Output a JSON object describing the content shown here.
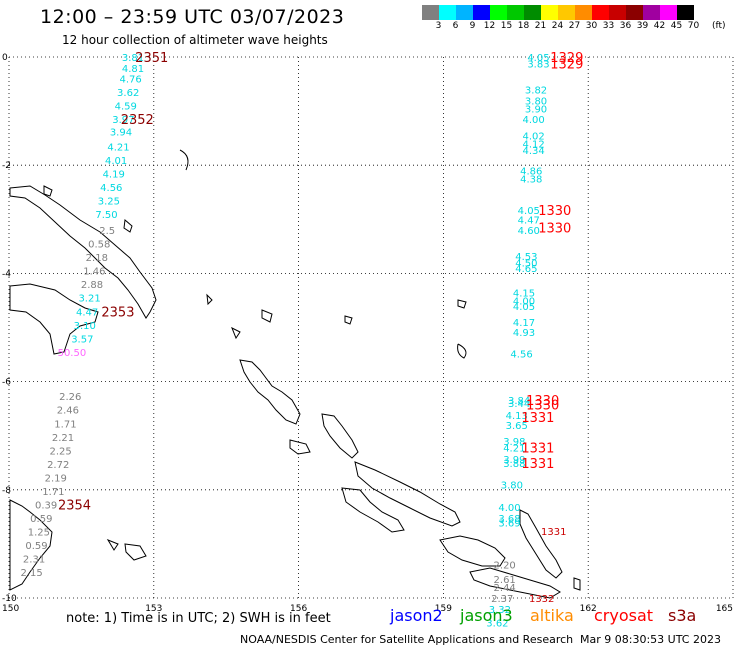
{
  "header": {
    "title": "12:00 – 23:59 UTC 03/07/2023",
    "subtitle": "12 hour collection of altimeter wave heights"
  },
  "legend": {
    "unit": "(ft)",
    "bins": [
      {
        "label": "3",
        "color": "#808080"
      },
      {
        "label": "6",
        "color": "#00ffff"
      },
      {
        "label": "9",
        "color": "#00b4ff"
      },
      {
        "label": "12",
        "color": "#0000ff"
      },
      {
        "label": "15",
        "color": "#00ff00"
      },
      {
        "label": "18",
        "color": "#00c800"
      },
      {
        "label": "21",
        "color": "#008c00"
      },
      {
        "label": "24",
        "color": "#ffff00"
      },
      {
        "label": "27",
        "color": "#ffc800"
      },
      {
        "label": "30",
        "color": "#ff8c00"
      },
      {
        "label": "33",
        "color": "#ff0000"
      },
      {
        "label": "36",
        "color": "#c80000"
      },
      {
        "label": "39",
        "color": "#8b0000"
      },
      {
        "label": "42",
        "color": "#a000a0"
      },
      {
        "label": "45",
        "color": "#ff00ff"
      },
      {
        "label": "70",
        "color": "#000000"
      }
    ]
  },
  "axes": {
    "x_ticks": [
      150,
      153,
      156,
      159,
      162,
      165
    ],
    "y_ticks": [
      0,
      -2,
      -4,
      -6,
      -8,
      -10
    ]
  },
  "chart_data": {
    "type": "scatter",
    "title": "12:00 – 23:59 UTC 03/07/2023",
    "subtitle": "12 hour collection of altimeter wave heights",
    "xlabel": "",
    "ylabel": "",
    "xlim": [
      150,
      165
    ],
    "ylim": [
      -10,
      0
    ],
    "grid": true,
    "series": [
      {
        "name": "jason2",
        "color": "#0000ff",
        "points": []
      },
      {
        "name": "jason3",
        "color": "#00a000",
        "points": []
      },
      {
        "name": "altika",
        "color": "#ff8c00",
        "points": []
      },
      {
        "name": "cryosat",
        "color": "#ff0000",
        "points": [
          {
            "lon": 161.55,
            "lat": -8.76,
            "text": "1331",
            "color": "#cc0000"
          },
          {
            "lon": 161.3,
            "lat": -10.0,
            "text": "1332",
            "color": "#cc0000"
          }
        ]
      },
      {
        "name": "s3a",
        "color": "#8b0000",
        "points": [
          {
            "lon": 152.8,
            "lat": 0.0,
            "text": "3.81",
            "color": "#00d8e0"
          },
          {
            "lon": 152.8,
            "lat": -0.2,
            "text": "4.81",
            "color": "#00d8e0"
          },
          {
            "lon": 152.75,
            "lat": -0.4,
            "text": "4.76",
            "color": "#00d8e0"
          },
          {
            "lon": 152.7,
            "lat": -0.65,
            "text": "3.62",
            "color": "#00d8e0"
          },
          {
            "lon": 152.65,
            "lat": -0.9,
            "text": "4.59",
            "color": "#00d8e0"
          },
          {
            "lon": 152.6,
            "lat": -1.15,
            "text": "3.97",
            "color": "#00d8e0"
          },
          {
            "lon": 152.55,
            "lat": -1.38,
            "text": "3.94",
            "color": "#00d8e0"
          },
          {
            "lon": 152.5,
            "lat": -1.65,
            "text": "4.21",
            "color": "#00d8e0"
          },
          {
            "lon": 152.45,
            "lat": -1.9,
            "text": "4.01",
            "color": "#00d8e0"
          },
          {
            "lon": 152.4,
            "lat": -2.15,
            "text": "4.19",
            "color": "#00d8e0"
          },
          {
            "lon": 152.35,
            "lat": -2.4,
            "text": "4.56",
            "color": "#00d8e0"
          },
          {
            "lon": 152.3,
            "lat": -2.65,
            "text": "3.25",
            "color": "#00d8e0"
          },
          {
            "lon": 152.25,
            "lat": -2.9,
            "text": "7.50",
            "color": "#00d8e0"
          },
          {
            "lon": 152.2,
            "lat": -3.2,
            "text": "2.5",
            "color": "#808080"
          },
          {
            "lon": 152.1,
            "lat": -3.45,
            "text": "0.58",
            "color": "#808080"
          },
          {
            "lon": 152.05,
            "lat": -3.7,
            "text": "2.18",
            "color": "#808080"
          },
          {
            "lon": 152.0,
            "lat": -3.95,
            "text": "1.46",
            "color": "#808080"
          },
          {
            "lon": 151.95,
            "lat": -4.2,
            "text": "2.88",
            "color": "#808080"
          },
          {
            "lon": 151.9,
            "lat": -4.45,
            "text": "3.21",
            "color": "#00d8e0"
          },
          {
            "lon": 151.85,
            "lat": -4.7,
            "text": "4.47",
            "color": "#00d8e0"
          },
          {
            "lon": 151.8,
            "lat": -4.95,
            "text": "3.10",
            "color": "#00d8e0"
          },
          {
            "lon": 151.75,
            "lat": -5.2,
            "text": "3.57",
            "color": "#00d8e0"
          },
          {
            "lon": 151.6,
            "lat": -5.45,
            "text": "50.50",
            "color": "#ff66ff"
          },
          {
            "lon": 151.5,
            "lat": -6.27,
            "text": "2.26",
            "color": "#808080"
          },
          {
            "lon": 151.45,
            "lat": -6.52,
            "text": "2.46",
            "color": "#808080"
          },
          {
            "lon": 151.4,
            "lat": -6.77,
            "text": "1.71",
            "color": "#808080"
          },
          {
            "lon": 151.35,
            "lat": -7.02,
            "text": "2.21",
            "color": "#808080"
          },
          {
            "lon": 151.3,
            "lat": -7.27,
            "text": "2.25",
            "color": "#808080"
          },
          {
            "lon": 151.25,
            "lat": -7.52,
            "text": "2.72",
            "color": "#808080"
          },
          {
            "lon": 151.2,
            "lat": -7.77,
            "text": "2.19",
            "color": "#808080"
          },
          {
            "lon": 151.15,
            "lat": -8.02,
            "text": "1.71",
            "color": "#808080"
          },
          {
            "lon": 151.0,
            "lat": -8.27,
            "text": "0.39",
            "color": "#808080"
          },
          {
            "lon": 150.9,
            "lat": -8.52,
            "text": "0.59",
            "color": "#808080"
          },
          {
            "lon": 150.85,
            "lat": -8.77,
            "text": "1.25",
            "color": "#808080"
          },
          {
            "lon": 150.8,
            "lat": -9.02,
            "text": "0.59",
            "color": "#808080"
          },
          {
            "lon": 150.75,
            "lat": -9.27,
            "text": "2.31",
            "color": "#808080"
          },
          {
            "lon": 150.7,
            "lat": -9.52,
            "text": "2.15",
            "color": "#808080"
          },
          {
            "lon": 161.2,
            "lat": 0.0,
            "text": "4.05",
            "color": "#00d8e0"
          },
          {
            "lon": 161.2,
            "lat": -0.12,
            "text": "3.83",
            "color": "#00d8e0"
          },
          {
            "lon": 161.15,
            "lat": -0.6,
            "text": "3.82",
            "color": "#00d8e0"
          },
          {
            "lon": 161.15,
            "lat": -0.8,
            "text": "3.80",
            "color": "#00d8e0"
          },
          {
            "lon": 161.15,
            "lat": -0.95,
            "text": "3.90",
            "color": "#00d8e0"
          },
          {
            "lon": 161.1,
            "lat": -1.15,
            "text": "4.00",
            "color": "#00d8e0"
          },
          {
            "lon": 161.1,
            "lat": -1.45,
            "text": "4.02",
            "color": "#00d8e0"
          },
          {
            "lon": 161.1,
            "lat": -1.6,
            "text": "4.12",
            "color": "#00d8e0"
          },
          {
            "lon": 161.1,
            "lat": -1.72,
            "text": "4.34",
            "color": "#00d8e0"
          },
          {
            "lon": 161.05,
            "lat": -2.1,
            "text": "4.86",
            "color": "#00d8e0"
          },
          {
            "lon": 161.05,
            "lat": -2.25,
            "text": "4.38",
            "color": "#00d8e0"
          },
          {
            "lon": 161.0,
            "lat": -2.83,
            "text": "4.05",
            "color": "#00d8e0"
          },
          {
            "lon": 161.0,
            "lat": -3.0,
            "text": "4.47",
            "color": "#00d8e0"
          },
          {
            "lon": 161.0,
            "lat": -3.2,
            "text": "4.60",
            "color": "#00d8e0"
          },
          {
            "lon": 160.95,
            "lat": -3.68,
            "text": "4.53",
            "color": "#00d8e0"
          },
          {
            "lon": 160.95,
            "lat": -3.8,
            "text": "4.50",
            "color": "#00d8e0"
          },
          {
            "lon": 160.95,
            "lat": -3.9,
            "text": "4.65",
            "color": "#00d8e0"
          },
          {
            "lon": 160.9,
            "lat": -4.35,
            "text": "4.15",
            "color": "#00d8e0"
          },
          {
            "lon": 160.9,
            "lat": -4.5,
            "text": "4.00",
            "color": "#00d8e0"
          },
          {
            "lon": 160.9,
            "lat": -4.6,
            "text": "4.05",
            "color": "#00d8e0"
          },
          {
            "lon": 160.9,
            "lat": -4.9,
            "text": "4.17",
            "color": "#00d8e0"
          },
          {
            "lon": 160.9,
            "lat": -5.08,
            "text": "4.93",
            "color": "#00d8e0"
          },
          {
            "lon": 160.85,
            "lat": -5.48,
            "text": "4.56",
            "color": "#00d8e0"
          },
          {
            "lon": 160.8,
            "lat": -6.34,
            "text": "3.84",
            "color": "#00d8e0"
          },
          {
            "lon": 160.8,
            "lat": -6.4,
            "text": "3.44",
            "color": "#00d8e0"
          },
          {
            "lon": 160.75,
            "lat": -6.62,
            "text": "4.13",
            "color": "#00d8e0"
          },
          {
            "lon": 160.75,
            "lat": -6.8,
            "text": "3.65",
            "color": "#00d8e0"
          },
          {
            "lon": 160.7,
            "lat": -7.1,
            "text": "3.98",
            "color": "#00d8e0"
          },
          {
            "lon": 160.7,
            "lat": -7.22,
            "text": "4.21",
            "color": "#00d8e0"
          },
          {
            "lon": 160.7,
            "lat": -7.43,
            "text": "3.99",
            "color": "#00d8e0"
          },
          {
            "lon": 160.7,
            "lat": -7.5,
            "text": "3.88",
            "color": "#00d8e0"
          },
          {
            "lon": 160.65,
            "lat": -7.9,
            "text": "3.80",
            "color": "#00d8e0"
          },
          {
            "lon": 160.6,
            "lat": -8.32,
            "text": "4.00",
            "color": "#00d8e0"
          },
          {
            "lon": 160.6,
            "lat": -8.52,
            "text": "3.68",
            "color": "#00d8e0"
          },
          {
            "lon": 160.6,
            "lat": -8.6,
            "text": "3.69",
            "color": "#00d8e0"
          },
          {
            "lon": 160.5,
            "lat": -9.38,
            "text": "2.20",
            "color": "#808080"
          },
          {
            "lon": 160.5,
            "lat": -9.65,
            "text": "2.61",
            "color": "#808080"
          },
          {
            "lon": 160.5,
            "lat": -9.8,
            "text": "2.44",
            "color": "#808080"
          },
          {
            "lon": 160.45,
            "lat": -10.0,
            "text": "2.37",
            "color": "#808080"
          },
          {
            "lon": 160.4,
            "lat": -10.2,
            "text": "3.32",
            "color": "#00d8e0"
          },
          {
            "lon": 160.35,
            "lat": -10.45,
            "text": "3.62",
            "color": "#00d8e0"
          }
        ]
      }
    ],
    "time_labels": [
      {
        "lon": 153.3,
        "lat": 0.0,
        "text": "2351",
        "color": "#8b0000"
      },
      {
        "lon": 153.0,
        "lat": -1.15,
        "text": "2352",
        "color": "#8b0000"
      },
      {
        "lon": 152.6,
        "lat": -4.7,
        "text": "2353",
        "color": "#8b0000"
      },
      {
        "lon": 151.7,
        "lat": -8.27,
        "text": "2354",
        "color": "#8b0000"
      },
      {
        "lon": 161.9,
        "lat": 0.0,
        "text": "1329",
        "color": "#ff0000"
      },
      {
        "lon": 161.9,
        "lat": -0.12,
        "text": "1329",
        "color": "#ff0000"
      },
      {
        "lon": 161.65,
        "lat": -2.83,
        "text": "1330",
        "color": "#ff0000"
      },
      {
        "lon": 161.65,
        "lat": -3.15,
        "text": "1330",
        "color": "#ff0000"
      },
      {
        "lon": 161.4,
        "lat": -6.34,
        "text": "1330",
        "color": "#ff0000"
      },
      {
        "lon": 161.4,
        "lat": -6.42,
        "text": "1330",
        "color": "#ff0000"
      },
      {
        "lon": 161.3,
        "lat": -6.65,
        "text": "1331",
        "color": "#ff0000"
      },
      {
        "lon": 161.3,
        "lat": -7.22,
        "text": "1331",
        "color": "#ff0000"
      },
      {
        "lon": 161.3,
        "lat": -7.5,
        "text": "1331",
        "color": "#ff0000"
      }
    ]
  },
  "footer": {
    "note": "note:  1) Time is in UTC;  2) SWH is in feet",
    "satellites": [
      {
        "label": "jason2",
        "color": "#0000ff"
      },
      {
        "label": "jason3",
        "color": "#00a000"
      },
      {
        "label": "altika",
        "color": "#ff8c00"
      },
      {
        "label": "cryosat",
        "color": "#ff0000"
      },
      {
        "label": "s3a",
        "color": "#8b0000"
      }
    ],
    "credit": "NOAA/NESDIS Center for Satellite Applications and Research",
    "timestamp": "Mar  9 08:30:53 UTC 2023"
  }
}
